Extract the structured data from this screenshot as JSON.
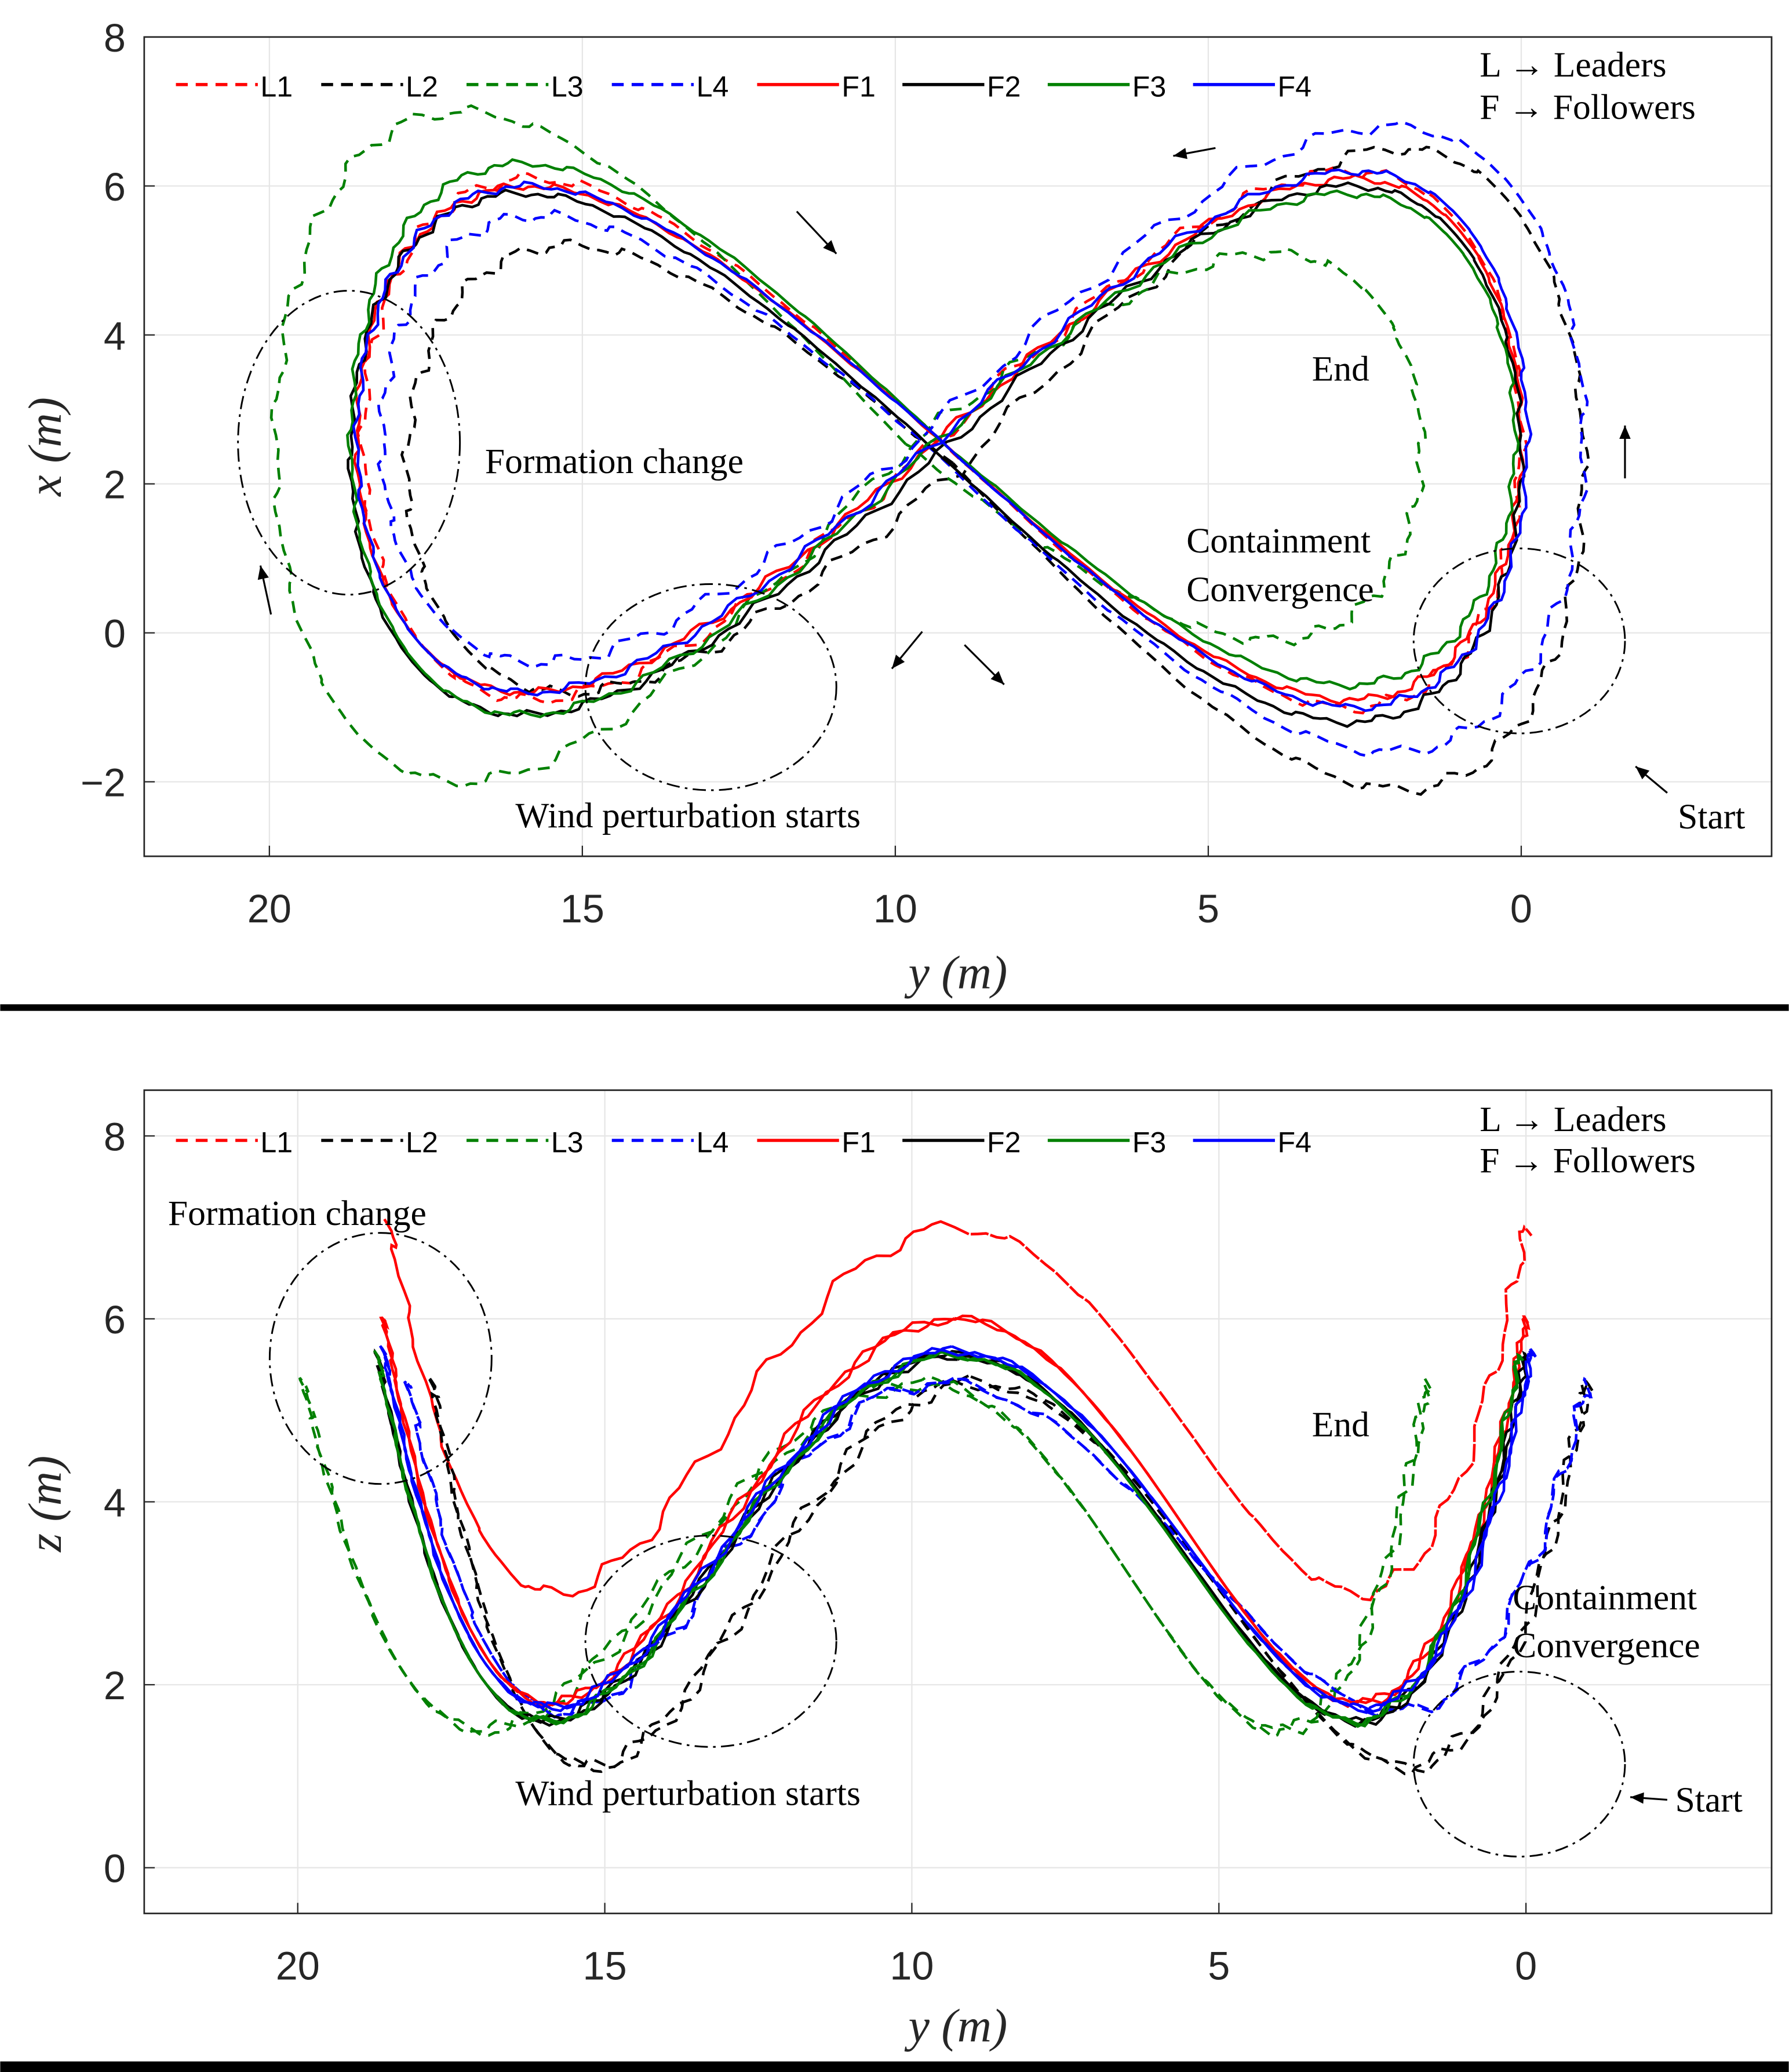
{
  "chart_data": [
    {
      "type": "line",
      "panel": "top",
      "xlabel": "y (m)",
      "ylabel": "x (m)",
      "xlim": [
        22,
        -4
      ],
      "ylim": [
        -3,
        8
      ],
      "grid": true,
      "xticks": [
        20,
        15,
        10,
        5,
        0
      ],
      "yticks": [
        8,
        6,
        4,
        2,
        0,
        -2
      ],
      "xtick_labels": [
        "20",
        "15",
        "10",
        "5",
        "0"
      ],
      "ytick_labels": [
        "8",
        "6",
        "4",
        "2",
        "0",
        "−2"
      ],
      "annotations": {
        "formation": "Formation change",
        "end": "End",
        "containment1": "Containment",
        "containment2": "Convergence",
        "wind": "Wind perturbation starts",
        "start": "Start",
        "key1": "L → Leaders",
        "key2": "F → Followers"
      }
    },
    {
      "type": "line",
      "panel": "bottom",
      "xlabel": "y (m)",
      "ylabel": "z (m)",
      "xlim": [
        22.5,
        -4
      ],
      "ylim": [
        -0.5,
        8.5
      ],
      "grid": true,
      "xticks": [
        20,
        15,
        10,
        5,
        0
      ],
      "yticks": [
        8,
        6,
        4,
        2,
        0
      ],
      "xtick_labels": [
        "20",
        "15",
        "10",
        "5",
        "0"
      ],
      "ytick_labels": [
        "8",
        "6",
        "4",
        "2",
        "0"
      ],
      "annotations": {
        "formation": "Formation change",
        "end": "End",
        "containment1": "Containment",
        "containment2": "Convergence",
        "wind": "Wind perturbation starts",
        "start": "Start",
        "key1": "L → Leaders",
        "key2": "F → Followers"
      }
    }
  ],
  "series": [
    {
      "name": "L1",
      "color": "#ff0000",
      "dash": true,
      "yc": 9.3,
      "aL": 9.2,
      "aR": 9.3,
      "xc": 2.6,
      "bL": 7.0,
      "bR": 7.2,
      "zm": 5.0,
      "za": 2.0
    },
    {
      "name": "L2",
      "color": "#000000",
      "dash": true,
      "yc": 9.0,
      "aL": 8.8,
      "aR": 10.0,
      "xc": 2.2,
      "bL": 6.0,
      "bR": 8.6,
      "zm": 3.2,
      "za": 2.1
    },
    {
      "name": "L3",
      "color": "#008000",
      "dash": true,
      "yc": 9.8,
      "aL": 10.1,
      "aR": 8.2,
      "xc": 2.5,
      "bL": 9.0,
      "bR": 5.2,
      "zm": 3.4,
      "za": 1.9
    },
    {
      "name": "L4",
      "color": "#0000ff",
      "dash": true,
      "yc": 9.6,
      "aL": 8.6,
      "aR": 10.6,
      "xc": 2.6,
      "bL": 6.0,
      "bR": 8.4,
      "zm": 3.5,
      "za": 1.8
    },
    {
      "name": "F1",
      "color": "#ff0000",
      "dash": false,
      "yc": 9.3,
      "aL": 9.3,
      "aR": 9.3,
      "xc": 2.6,
      "bL": 6.8,
      "bR": 7.0,
      "zm": 3.9,
      "za": 2.1
    },
    {
      "name": "F2",
      "color": "#000000",
      "dash": false,
      "yc": 9.3,
      "aL": 9.4,
      "aR": 9.3,
      "xc": 2.4,
      "bL": 7.0,
      "bR": 7.2,
      "zm": 3.6,
      "za": 2.0
    },
    {
      "name": "F3",
      "color": "#008000",
      "dash": false,
      "yc": 9.3,
      "aL": 9.4,
      "aR": 9.2,
      "xc": 2.6,
      "bL": 7.4,
      "bR": 6.6,
      "zm": 3.6,
      "za": 2.0
    },
    {
      "name": "F4",
      "color": "#0000ff",
      "dash": false,
      "yc": 9.3,
      "aL": 9.3,
      "aR": 9.4,
      "xc": 2.6,
      "bL": 6.8,
      "bR": 7.2,
      "zm": 3.7,
      "za": 1.95
    }
  ]
}
